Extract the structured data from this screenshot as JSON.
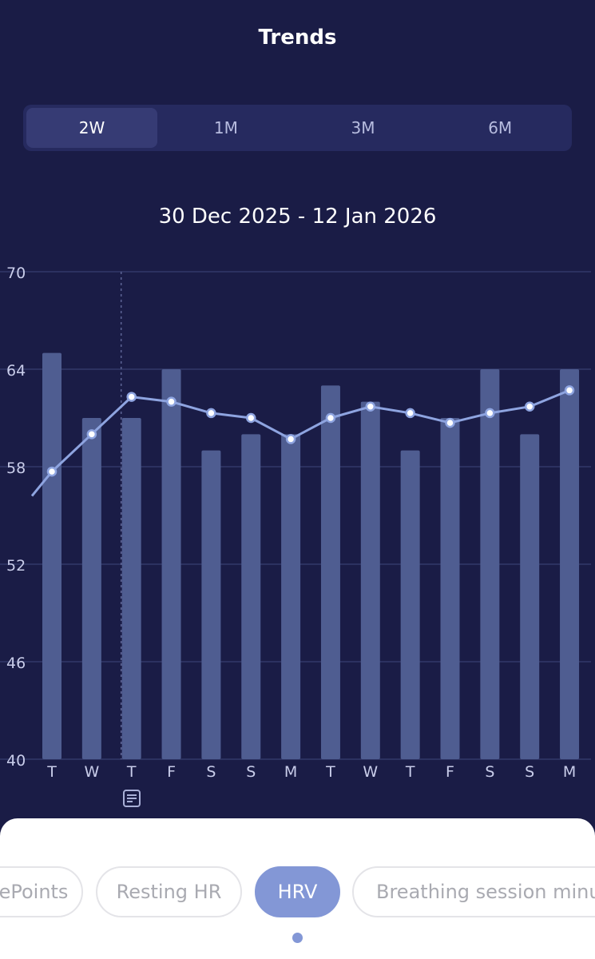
{
  "header": {
    "title": "Trends"
  },
  "range_tabs": [
    {
      "label": "2W",
      "active": true
    },
    {
      "label": "1M",
      "active": false
    },
    {
      "label": "3M",
      "active": false
    },
    {
      "label": "6M",
      "active": false
    }
  ],
  "date_range": "30 Dec 2025 - 12 Jan 2026",
  "colors": {
    "background": "#1a1c46",
    "bar": "#4f5d91",
    "line": "#8ea4e0",
    "accent": "#8397d6"
  },
  "chart_data": {
    "type": "bar",
    "categories": [
      "T",
      "W",
      "T",
      "F",
      "S",
      "S",
      "M",
      "T",
      "W",
      "T",
      "F",
      "S",
      "S",
      "M"
    ],
    "series": [
      {
        "type": "bar",
        "values": [
          65,
          61,
          61,
          64,
          59,
          60,
          60,
          63,
          62,
          59,
          61,
          64,
          60,
          64
        ]
      },
      {
        "type": "line",
        "values": [
          57.7,
          60,
          62.3,
          62,
          61.3,
          61,
          59.7,
          61,
          61.7,
          61.3,
          60.7,
          61.3,
          61.7,
          62.7
        ]
      }
    ],
    "yticks": [
      40,
      46,
      52,
      58,
      64,
      70
    ],
    "ylim": [
      40,
      70
    ],
    "grid": true,
    "marker_day_index": 2
  },
  "metric_tabs": [
    {
      "label": "ePoints",
      "active": false
    },
    {
      "label": "Resting HR",
      "active": false
    },
    {
      "label": "HRV",
      "active": true
    },
    {
      "label": "Breathing session minute",
      "active": false
    }
  ],
  "icons": {
    "note": "note-icon"
  }
}
